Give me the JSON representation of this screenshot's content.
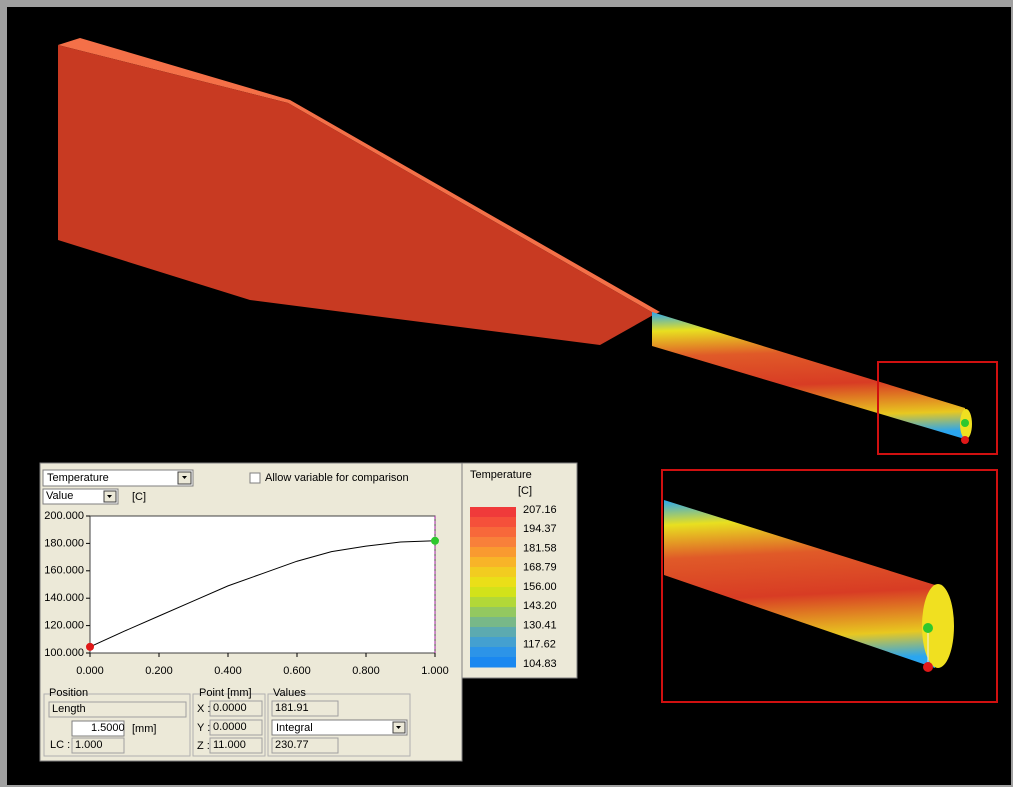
{
  "panel": {
    "variable": "Temperature",
    "mode": "Value",
    "unit": "[C]",
    "compare_label": "Allow variable for comparison",
    "chart": {
      "type": "line",
      "x": [
        0,
        0.1,
        0.2,
        0.3,
        0.4,
        0.5,
        0.6,
        0.7,
        0.8,
        0.9,
        1.0
      ],
      "values": [
        104.5,
        116,
        127,
        138,
        149,
        158,
        167,
        174,
        178,
        181,
        181.9
      ],
      "color": "#000000",
      "xlim": [
        0,
        1
      ],
      "ylim": [
        100,
        200
      ],
      "xticks": [
        {
          "value": 0,
          "label": "0.000"
        },
        {
          "value": 0.2,
          "label": "0.200"
        },
        {
          "value": 0.4,
          "label": "0.400"
        },
        {
          "value": 0.6,
          "label": "0.600"
        },
        {
          "value": 0.8,
          "label": "0.800"
        },
        {
          "value": 1,
          "label": "1.000"
        }
      ],
      "yticks": [
        {
          "value": 100,
          "label": "100.000"
        },
        {
          "value": 120,
          "label": "120.000"
        },
        {
          "value": 140,
          "label": "140.000"
        },
        {
          "value": 160,
          "label": "160.000"
        },
        {
          "value": 180,
          "label": "180.000"
        },
        {
          "value": 200,
          "label": "200.000"
        }
      ]
    },
    "position": {
      "title": "Position",
      "mode": "Length",
      "value": "1.5000",
      "unit": "[mm]",
      "lc_label": "LC :",
      "lc": "1.000"
    },
    "point": {
      "title": "Point [mm]",
      "x_label": "X :",
      "x": "0.0000",
      "y_label": "Y :",
      "y": "0.0000",
      "z_label": "Z :",
      "z": "11.000"
    },
    "values": {
      "title": "Values",
      "value": "181.91",
      "mode": "Integral",
      "integral": "230.77"
    }
  },
  "legend": {
    "title": "Temperature",
    "unit": "[C]",
    "labels": [
      "207.16",
      "194.37",
      "181.58",
      "168.79",
      "156.00",
      "143.20",
      "130.41",
      "117.62",
      "104.83"
    ],
    "colors": [
      "#f03a3a",
      "#f5503a",
      "#f7683a",
      "#f8803a",
      "#f99a30",
      "#f8b428",
      "#f2cc20",
      "#eadf18",
      "#d2e21a",
      "#b2d838",
      "#93c860",
      "#78b888",
      "#5caab0",
      "#44a0d0",
      "#2c94e8",
      "#1a88f0"
    ]
  }
}
